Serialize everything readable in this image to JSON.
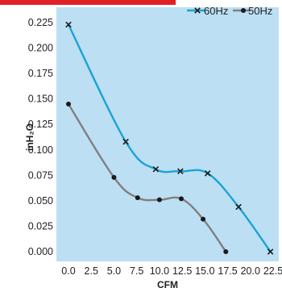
{
  "colors": {
    "plot_background": "#bcdff3",
    "accent_bar": "#e11f26",
    "series_60hz": "#1aa3d6",
    "series_50hz": "#808080",
    "marker_60hz": "#1a1a1a",
    "marker_50hz": "#1a1a1a"
  },
  "chart_data": {
    "type": "line",
    "xlabel": "CFM",
    "ylabel": "inH₂O",
    "xlim": [
      -1.5,
      22.5
    ],
    "ylim": [
      -0.012,
      0.23
    ],
    "x_ticks": [
      "0.0",
      "2.5",
      "5.0",
      "7.5",
      "10.0",
      "12.5",
      "15.0",
      "17.5",
      "20.0",
      "22.5"
    ],
    "y_ticks": [
      "0.225",
      "0.200",
      "0.175",
      "0.150",
      "0.125",
      "0.100",
      "0.075",
      "0.050",
      "0.025",
      "0.000"
    ],
    "x_tick_values": [
      0,
      2.5,
      5,
      7.5,
      10,
      12.5,
      15,
      17.5,
      20,
      22.5
    ],
    "y_tick_values": [
      0.225,
      0.2,
      0.175,
      0.15,
      0.125,
      0.1,
      0.075,
      0.05,
      0.025,
      0
    ],
    "grid": false,
    "legend_position": "top-right",
    "series": [
      {
        "name": "60Hz",
        "marker": "x",
        "color_key": "series_60hz",
        "points": [
          [
            0,
            0.223
          ],
          [
            6.3,
            0.108
          ],
          [
            9.6,
            0.081
          ],
          [
            12.3,
            0.079
          ],
          [
            15.3,
            0.077
          ],
          [
            18.7,
            0.044
          ],
          [
            22.2,
            0.0
          ]
        ]
      },
      {
        "name": "50Hz",
        "marker": "circle",
        "color_key": "series_50hz",
        "points": [
          [
            0,
            0.145
          ],
          [
            5.0,
            0.073
          ],
          [
            7.6,
            0.053
          ],
          [
            10.0,
            0.051
          ],
          [
            12.4,
            0.052
          ],
          [
            14.8,
            0.032
          ],
          [
            17.3,
            0.0
          ]
        ]
      }
    ]
  }
}
